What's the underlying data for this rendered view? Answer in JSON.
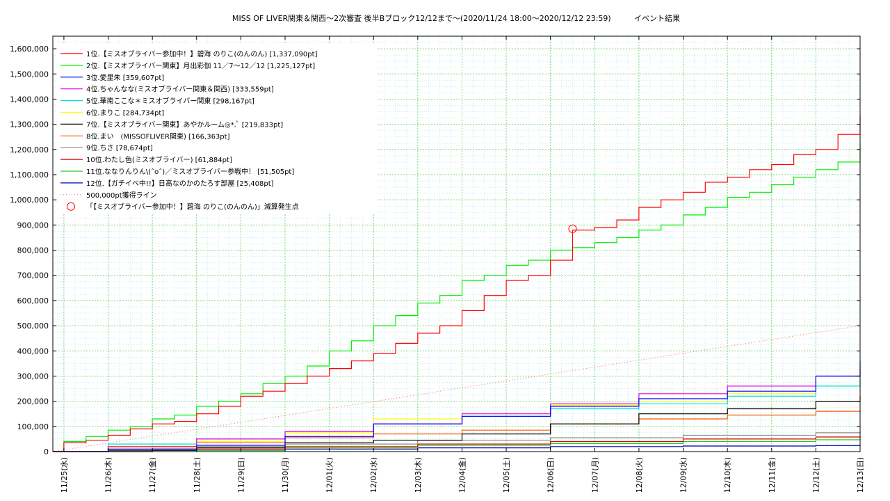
{
  "chart_data": {
    "type": "line",
    "title": "MISS OF LIVER関東＆関西〜2次審査 後半Bブロック12/12まで〜(2020/11/24 18:00〜2020/12/12 23:59)",
    "subtitle": "イベント結果",
    "xlabel": "",
    "ylabel": "",
    "ylim": [
      0,
      1650000
    ],
    "xlim": [
      "2020-11-24 18:00",
      "2020-12-13 00:00"
    ],
    "y_ticks": [
      0,
      100000,
      200000,
      300000,
      400000,
      500000,
      600000,
      700000,
      800000,
      900000,
      1000000,
      1100000,
      1200000,
      1300000,
      1400000,
      1500000,
      1600000
    ],
    "y_tick_labels": [
      "0",
      "100,000",
      "200,000",
      "300,000",
      "400,000",
      "500,000",
      "600,000",
      "700,000",
      "800,000",
      "900,000",
      "1,000,000",
      "1,100,000",
      "1,200,000",
      "1,300,000",
      "1,400,000",
      "1,500,000",
      "1,600,000"
    ],
    "x_ticks": [
      "2020-11-25",
      "2020-11-26",
      "2020-11-27",
      "2020-11-28",
      "2020-11-29",
      "2020-11-30",
      "2020-12-01",
      "2020-12-02",
      "2020-12-03",
      "2020-12-04",
      "2020-12-05",
      "2020-12-06",
      "2020-12-07",
      "2020-12-08",
      "2020-12-09",
      "2020-12-10",
      "2020-12-11",
      "2020-12-12",
      "2020-12-13"
    ],
    "x_tick_labels": [
      "11/25(水)",
      "11/26(木)",
      "11/27(金)",
      "11/28(土)",
      "11/29(日)",
      "11/30(月)",
      "12/01(火)",
      "12/02(水)",
      "12/03(木)",
      "12/04(金)",
      "12/05(土)",
      "12/06(日)",
      "12/07(月)",
      "12/08(火)",
      "12/09(水)",
      "12/10(木)",
      "12/11(金)",
      "12/12(土)",
      "12/13(日)"
    ],
    "grid": true,
    "legend_position": "top-left",
    "series": [
      {
        "name": "1位.【ミスオブライバー参加中！】碧海 のりこ(のんのん) [1,337,090pt]",
        "color": "#ff0000",
        "x": [
          "2020-11-24 18:00",
          "2020-11-25 00:00",
          "2020-11-25 12:00",
          "2020-11-26 00:00",
          "2020-11-26 12:00",
          "2020-11-27 00:00",
          "2020-11-27 12:00",
          "2020-11-28 00:00",
          "2020-11-28 12:00",
          "2020-11-29 00:00",
          "2020-11-29 12:00",
          "2020-11-30 00:00",
          "2020-11-30 12:00",
          "2020-12-01 00:00",
          "2020-12-01 12:00",
          "2020-12-02 00:00",
          "2020-12-02 12:00",
          "2020-12-03 00:00",
          "2020-12-03 12:00",
          "2020-12-04 00:00",
          "2020-12-04 12:00",
          "2020-12-05 00:00",
          "2020-12-05 12:00",
          "2020-12-06 00:00",
          "2020-12-06 12:00",
          "2020-12-07 00:00",
          "2020-12-07 12:00",
          "2020-12-08 00:00",
          "2020-12-08 12:00",
          "2020-12-09 00:00",
          "2020-12-09 12:00",
          "2020-12-10 00:00",
          "2020-12-10 12:00",
          "2020-12-11 00:00",
          "2020-12-11 12:00",
          "2020-12-12 00:00",
          "2020-12-12 12:00",
          "2020-12-13 00:00"
        ],
        "y": [
          0,
          35000,
          45000,
          65000,
          90000,
          110000,
          120000,
          150000,
          180000,
          220000,
          240000,
          270000,
          300000,
          330000,
          360000,
          390000,
          430000,
          470000,
          500000,
          560000,
          620000,
          680000,
          700000,
          760000,
          880000,
          890000,
          920000,
          970000,
          1000000,
          1030000,
          1070000,
          1090000,
          1120000,
          1140000,
          1180000,
          1200000,
          1260000,
          1337090
        ]
      },
      {
        "name": "2位.【ミスオブライバー関東】月出彩伽 11／7〜12／12 [1,225,127pt]",
        "color": "#00ee00",
        "x": [
          "2020-11-24 18:00",
          "2020-11-25 00:00",
          "2020-11-25 12:00",
          "2020-11-26 00:00",
          "2020-11-26 12:00",
          "2020-11-27 00:00",
          "2020-11-27 12:00",
          "2020-11-28 00:00",
          "2020-11-28 12:00",
          "2020-11-29 00:00",
          "2020-11-29 12:00",
          "2020-11-30 00:00",
          "2020-11-30 12:00",
          "2020-12-01 00:00",
          "2020-12-01 12:00",
          "2020-12-02 00:00",
          "2020-12-02 12:00",
          "2020-12-03 00:00",
          "2020-12-03 12:00",
          "2020-12-04 00:00",
          "2020-12-04 12:00",
          "2020-12-05 00:00",
          "2020-12-05 12:00",
          "2020-12-06 00:00",
          "2020-12-06 12:00",
          "2020-12-07 00:00",
          "2020-12-07 12:00",
          "2020-12-08 00:00",
          "2020-12-08 12:00",
          "2020-12-09 00:00",
          "2020-12-09 12:00",
          "2020-12-10 00:00",
          "2020-12-10 12:00",
          "2020-12-11 00:00",
          "2020-12-11 12:00",
          "2020-12-12 00:00",
          "2020-12-12 12:00",
          "2020-12-13 00:00"
        ],
        "y": [
          0,
          40000,
          60000,
          85000,
          100000,
          130000,
          145000,
          180000,
          200000,
          230000,
          270000,
          300000,
          340000,
          400000,
          440000,
          500000,
          540000,
          590000,
          620000,
          680000,
          700000,
          740000,
          760000,
          800000,
          810000,
          830000,
          850000,
          880000,
          900000,
          940000,
          970000,
          1010000,
          1030000,
          1060000,
          1090000,
          1120000,
          1150000,
          1225127
        ]
      },
      {
        "name": "3位.愛里朱 [359,607pt]",
        "color": "#0000ff",
        "x": [
          "2020-11-24 18:00",
          "2020-11-26 00:00",
          "2020-11-28 00:00",
          "2020-11-30 00:00",
          "2020-12-02 00:00",
          "2020-12-04 00:00",
          "2020-12-06 00:00",
          "2020-12-08 00:00",
          "2020-12-10 00:00",
          "2020-12-12 00:00",
          "2020-12-13 00:00"
        ],
        "y": [
          0,
          10000,
          25000,
          60000,
          110000,
          140000,
          180000,
          210000,
          240000,
          300000,
          359607
        ]
      },
      {
        "name": "4位.ちゃんなな(ミスオブライバー関東＆関西) [333,559pt]",
        "color": "#ee00ee",
        "x": [
          "2020-11-24 18:00",
          "2020-11-26 00:00",
          "2020-11-28 00:00",
          "2020-11-30 00:00",
          "2020-12-02 00:00",
          "2020-12-04 00:00",
          "2020-12-06 00:00",
          "2020-12-08 00:00",
          "2020-12-10 00:00",
          "2020-12-12 00:00",
          "2020-12-13 00:00"
        ],
        "y": [
          0,
          20000,
          50000,
          80000,
          110000,
          150000,
          190000,
          230000,
          260000,
          300000,
          333559
        ]
      },
      {
        "name": "5位.華南ここな＊ミスオブライバー関東 [298,167pt]",
        "color": "#00dddd",
        "x": [
          "2020-11-24 18:00",
          "2020-11-26 00:00",
          "2020-11-28 00:00",
          "2020-11-30 00:00",
          "2020-12-02 00:00",
          "2020-12-04 00:00",
          "2020-12-06 00:00",
          "2020-12-08 00:00",
          "2020-12-10 00:00",
          "2020-12-12 00:00",
          "2020-12-13 00:00"
        ],
        "y": [
          0,
          30000,
          50000,
          80000,
          110000,
          140000,
          170000,
          190000,
          220000,
          260000,
          298167
        ]
      },
      {
        "name": "6位.まりこ [284,734pt]",
        "color": "#ffff00",
        "x": [
          "2020-11-24 18:00",
          "2020-11-26 00:00",
          "2020-11-28 00:00",
          "2020-11-30 00:00",
          "2020-12-02 00:00",
          "2020-12-04 00:00",
          "2020-12-06 00:00",
          "2020-12-08 00:00",
          "2020-12-10 00:00",
          "2020-12-12 00:00",
          "2020-12-13 00:00"
        ],
        "y": [
          0,
          15000,
          40000,
          75000,
          130000,
          150000,
          185000,
          200000,
          230000,
          260000,
          284734
        ]
      },
      {
        "name": "7位.【ミスオブライバー関東】あやかルーム◎*.ﾟ [219,833pt]",
        "color": "#000000",
        "x": [
          "2020-11-24 18:00",
          "2020-11-26 00:00",
          "2020-11-28 00:00",
          "2020-11-30 00:00",
          "2020-12-02 00:00",
          "2020-12-04 00:00",
          "2020-12-06 00:00",
          "2020-12-08 00:00",
          "2020-12-10 00:00",
          "2020-12-12 00:00",
          "2020-12-13 00:00"
        ],
        "y": [
          0,
          5000,
          15000,
          35000,
          45000,
          70000,
          110000,
          150000,
          170000,
          200000,
          219833
        ]
      },
      {
        "name": "8位.まい　(MISSOFLIVER関東) [166,363pt]",
        "color": "#ff5500",
        "x": [
          "2020-11-24 18:00",
          "2020-11-26 00:00",
          "2020-11-28 00:00",
          "2020-11-30 00:00",
          "2020-12-02 00:00",
          "2020-12-04 00:00",
          "2020-12-06 00:00",
          "2020-12-08 00:00",
          "2020-12-10 00:00",
          "2020-12-12 00:00",
          "2020-12-13 00:00"
        ],
        "y": [
          0,
          20000,
          35000,
          55000,
          70000,
          85000,
          110000,
          130000,
          145000,
          160000,
          166363
        ]
      },
      {
        "name": "9位.ちさ [78,674pt]",
        "color": "#888888",
        "x": [
          "2020-11-24 18:00",
          "2020-11-27 00:00",
          "2020-11-30 00:00",
          "2020-12-03 00:00",
          "2020-12-06 00:00",
          "2020-12-09 00:00",
          "2020-12-12 00:00",
          "2020-12-13 00:00"
        ],
        "y": [
          0,
          20000,
          30000,
          45000,
          55000,
          65000,
          75000,
          78674
        ]
      },
      {
        "name": "10位.わたし色(ミスオブライバー) [61,884pt]",
        "color": "#dd0000",
        "x": [
          "2020-11-24 18:00",
          "2020-11-27 00:00",
          "2020-11-30 00:00",
          "2020-12-03 00:00",
          "2020-12-06 00:00",
          "2020-12-09 00:00",
          "2020-12-12 00:00",
          "2020-12-13 00:00"
        ],
        "y": [
          0,
          10000,
          20000,
          30000,
          40000,
          50000,
          58000,
          61884
        ]
      },
      {
        "name": "11位.ななりんりん\\(ˆoˆ)／ミスオブライバー参戦中！ [51,505pt]",
        "color": "#22cc22",
        "x": [
          "2020-11-24 18:00",
          "2020-11-27 00:00",
          "2020-11-30 00:00",
          "2020-12-03 00:00",
          "2020-12-06 00:00",
          "2020-12-09 00:00",
          "2020-12-12 00:00",
          "2020-12-13 00:00"
        ],
        "y": [
          0,
          5000,
          15000,
          25000,
          32000,
          40000,
          47000,
          51505
        ]
      },
      {
        "name": "12位.【ガチイベ中!!】日高なのかのたろす部屋 [25,408pt]",
        "color": "#0000aa",
        "x": [
          "2020-11-24 18:00",
          "2020-11-27 00:00",
          "2020-11-30 00:00",
          "2020-12-03 00:00",
          "2020-12-06 00:00",
          "2020-12-09 00:00",
          "2020-12-12 00:00",
          "2020-12-13 00:00"
        ],
        "y": [
          0,
          5000,
          10000,
          15000,
          20000,
          22000,
          24000,
          25408
        ]
      }
    ],
    "reference_line": {
      "name": "500,000pt獲得ライン",
      "color": "#ff6666",
      "x": [
        "2020-11-24 18:00",
        "2020-12-13 00:00"
      ],
      "y": [
        0,
        500000
      ]
    },
    "marker": {
      "name": "「【ミスオブライバー参加中！】碧海 のりこ(のんのん)」減算発生点",
      "color": "#ff0000",
      "x": "2020-12-06 12:00",
      "y": 885000
    }
  }
}
